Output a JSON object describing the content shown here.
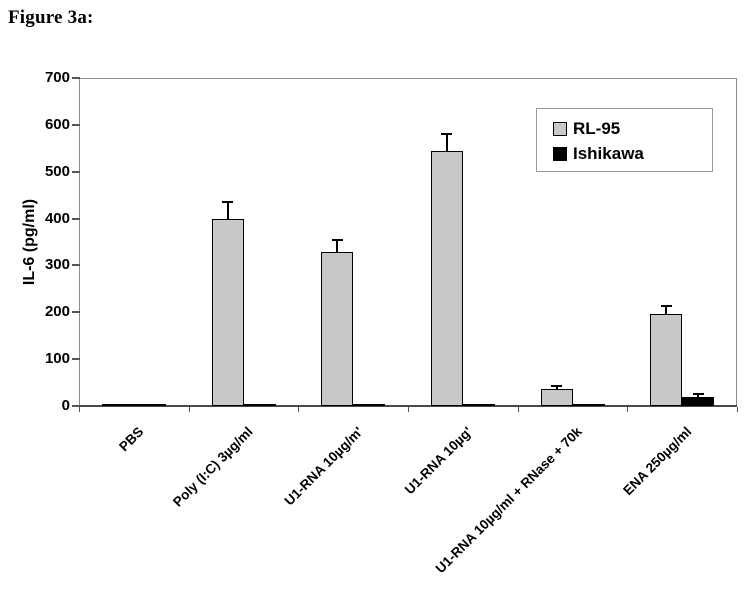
{
  "figure": {
    "title": "Figure 3a:"
  },
  "chart_data": {
    "type": "bar",
    "title": "",
    "ylabel": "IL-6 (pg/ml)",
    "xlabel": "",
    "ylim": [
      0,
      700
    ],
    "yticks": [
      0,
      100,
      200,
      300,
      400,
      500,
      600,
      700
    ],
    "grid": false,
    "legend_position": "top-right-inside",
    "categories": [
      "PBS",
      "Poly (I:C) 3µg/ml",
      "U1-RNA 10µg/m'",
      "U1-RNA 10µg'",
      "U1-RNA 10µg/ml + RNase + 70k",
      "ENA 250µg/ml"
    ],
    "series": [
      {
        "name": "RL-95",
        "color": "#c8c8c8",
        "values": [
          0,
          400,
          328,
          545,
          36,
          196
        ],
        "errors_plus": [
          0,
          38,
          28,
          38,
          8,
          20
        ]
      },
      {
        "name": "Ishikawa",
        "color": "#000000",
        "values": [
          0,
          0,
          0,
          0,
          0,
          19
        ],
        "errors_plus": [
          0,
          0,
          0,
          0,
          0,
          9
        ]
      }
    ]
  },
  "colors": {
    "background": "#ffffff",
    "plot_border": "#8c8c8c",
    "axis": "#4a4a4a",
    "bar_border": "#000000",
    "text": "#000000"
  }
}
